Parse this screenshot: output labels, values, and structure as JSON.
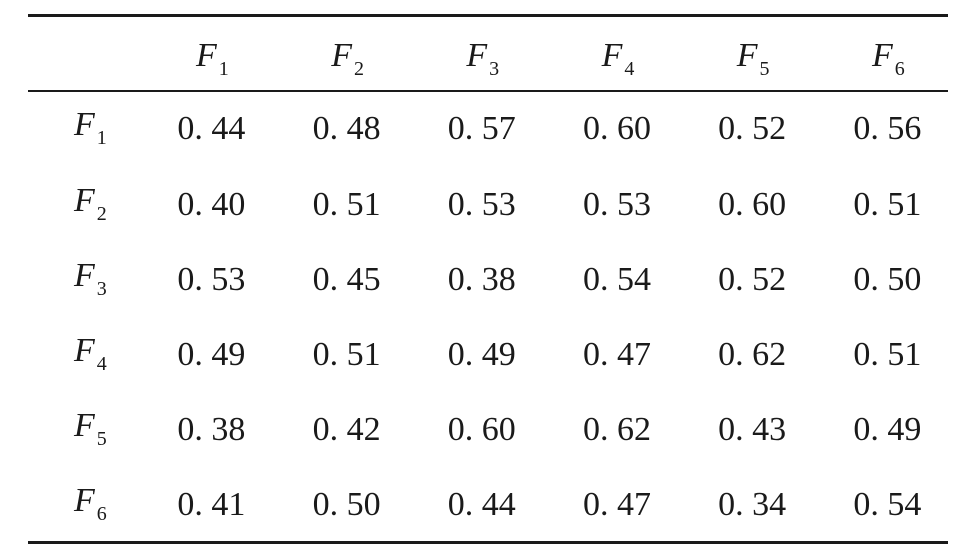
{
  "table": {
    "columns": [
      {
        "sym": "F",
        "sub": "1"
      },
      {
        "sym": "F",
        "sub": "2"
      },
      {
        "sym": "F",
        "sub": "3"
      },
      {
        "sym": "F",
        "sub": "4"
      },
      {
        "sym": "F",
        "sub": "5"
      },
      {
        "sym": "F",
        "sub": "6"
      }
    ],
    "rows": [
      {
        "label": {
          "sym": "F",
          "sub": "1"
        },
        "cells": [
          "0. 44",
          "0. 48",
          "0. 57",
          "0. 60",
          "0. 52",
          "0. 56"
        ]
      },
      {
        "label": {
          "sym": "F",
          "sub": "2"
        },
        "cells": [
          "0. 40",
          "0. 51",
          "0. 53",
          "0. 53",
          "0. 60",
          "0. 51"
        ]
      },
      {
        "label": {
          "sym": "F",
          "sub": "3"
        },
        "cells": [
          "0. 53",
          "0. 45",
          "0. 38",
          "0. 54",
          "0. 52",
          "0. 50"
        ]
      },
      {
        "label": {
          "sym": "F",
          "sub": "4"
        },
        "cells": [
          "0. 49",
          "0. 51",
          "0. 49",
          "0. 47",
          "0. 62",
          "0. 51"
        ]
      },
      {
        "label": {
          "sym": "F",
          "sub": "5"
        },
        "cells": [
          "0. 38",
          "0. 42",
          "0. 60",
          "0. 62",
          "0. 43",
          "0. 49"
        ]
      },
      {
        "label": {
          "sym": "F",
          "sub": "6"
        },
        "cells": [
          "0. 41",
          "0. 50",
          "0. 44",
          "0. 47",
          "0. 34",
          "0. 54"
        ]
      }
    ]
  }
}
